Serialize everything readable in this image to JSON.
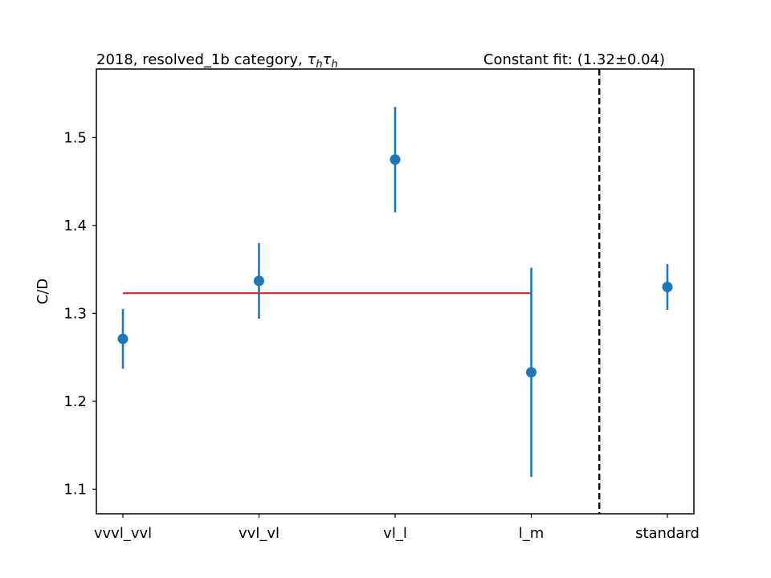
{
  "chart_data": {
    "type": "scatter",
    "title_left": "2018, resolved_1b category, ",
    "title_left_math": [
      "τ",
      "h",
      "τ",
      "h"
    ],
    "title_right": "Constant fit: (1.32±0.04)",
    "xlabel": "",
    "ylabel": "C/D",
    "categories": [
      "vvvl_vvl",
      "vvl_vl",
      "vl_l",
      "l_m",
      "standard"
    ],
    "points": [
      {
        "x": "vvvl_vvl",
        "y": 1.271,
        "yerr": 0.034
      },
      {
        "x": "vvl_vl",
        "y": 1.337,
        "yerr": 0.043
      },
      {
        "x": "vl_l",
        "y": 1.475,
        "yerr": 0.06
      },
      {
        "x": "l_m",
        "y": 1.233,
        "yerr": 0.119
      },
      {
        "x": "standard",
        "y": 1.33,
        "yerr": 0.026
      }
    ],
    "fit": {
      "value": 1.323,
      "from": "vvvl_vvl",
      "to": "l_m"
    },
    "separator_between": [
      "l_m",
      "standard"
    ],
    "ylim": [
      1.072,
      1.578
    ],
    "yticks": [
      "1.1",
      "1.2",
      "1.3",
      "1.4",
      "1.5"
    ],
    "grid": false,
    "colors": {
      "points": "#1f77b4",
      "fit": "#d62728",
      "separator": "#000000"
    }
  }
}
